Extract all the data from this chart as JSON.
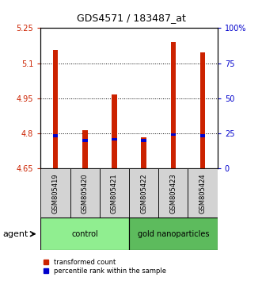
{
  "title": "GDS4571 / 183487_at",
  "samples": [
    "GSM805419",
    "GSM805420",
    "GSM805421",
    "GSM805422",
    "GSM805423",
    "GSM805424"
  ],
  "transformed_counts": [
    5.155,
    4.815,
    4.965,
    4.785,
    5.19,
    5.145
  ],
  "percentile_ranks": [
    4.79,
    4.77,
    4.775,
    4.77,
    4.795,
    4.79
  ],
  "ylim_left": [
    4.65,
    5.25
  ],
  "ylim_right": [
    0,
    100
  ],
  "yticks_left": [
    4.65,
    4.8,
    4.95,
    5.1,
    5.25
  ],
  "yticks_right": [
    0,
    25,
    50,
    75,
    100
  ],
  "ytick_labels_left": [
    "4.65",
    "4.8",
    "4.95",
    "5.1",
    "5.25"
  ],
  "ytick_labels_right": [
    "0",
    "25",
    "50",
    "75",
    "100%"
  ],
  "groups": [
    {
      "label": "control",
      "indices": [
        0,
        1,
        2
      ],
      "color": "#90EE90"
    },
    {
      "label": "gold nanoparticles",
      "indices": [
        3,
        4,
        5
      ],
      "color": "#5DBB5D"
    }
  ],
  "bar_color": "#CC2200",
  "percentile_color": "#0000CC",
  "bar_width": 0.18,
  "percentile_bar_height": 0.012,
  "grid_linestyle": "dotted",
  "background_color": "#ffffff",
  "agent_label": "agent",
  "legend_tc": "transformed count",
  "legend_pr": "percentile rank within the sample",
  "left_tick_color": "#CC2200",
  "right_tick_color": "#0000CC",
  "xlabel_area_color": "#d3d3d3",
  "title_fontsize": 9,
  "tick_fontsize": 7,
  "sample_fontsize": 6,
  "group_fontsize": 7,
  "legend_fontsize": 6,
  "agent_fontsize": 8
}
